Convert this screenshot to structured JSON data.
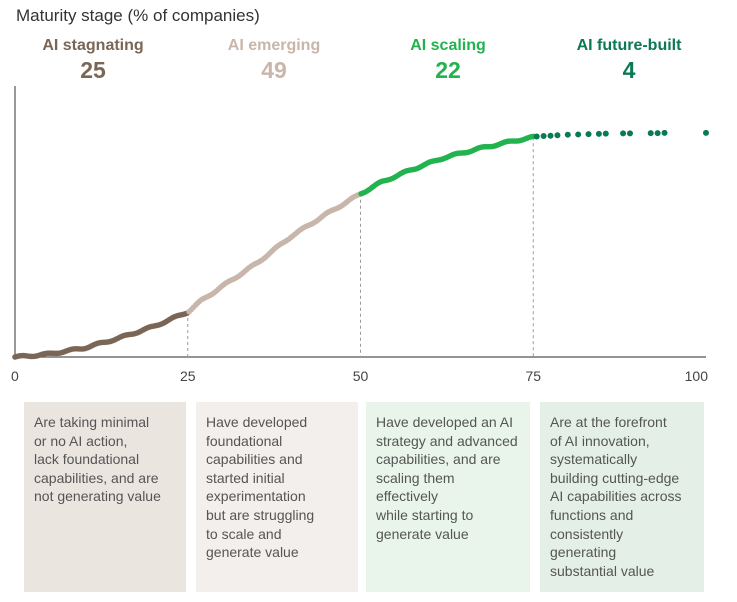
{
  "title": "Maturity stage (% of companies)",
  "stages": [
    {
      "name": "AI stagnating",
      "percent": "25",
      "color": "#7a6656",
      "desc_bg": "#ebe5e0",
      "description": [
        "Are taking minimal",
        "or no AI action,",
        "lack foundational",
        "capabilities, and are",
        "not generating value"
      ]
    },
    {
      "name": "AI emerging",
      "percent": "49",
      "color": "#c9b6ab",
      "desc_bg": "#f2efed",
      "description": [
        "Have developed",
        "foundational",
        "capabilities and",
        "started initial",
        "experimentation",
        "but are struggling",
        "to scale and",
        "generate value"
      ]
    },
    {
      "name": "AI scaling",
      "percent": "22",
      "color": "#22b34f",
      "desc_bg": "#e9f5ea",
      "description": [
        "Have developed an AI",
        "strategy and advanced",
        "capabilities, and are",
        "scaling them effectively",
        "while starting to",
        "generate value"
      ]
    },
    {
      "name": "AI future-built",
      "percent": "4",
      "color": "#0b7a52",
      "desc_bg": "#e4efe7",
      "description": [
        "Are at the forefront",
        "of AI innovation,",
        "systematically",
        "building cutting-edge",
        "AI capabilities across",
        "functions and",
        "consistently",
        "generating",
        "substantial value"
      ]
    }
  ],
  "chart_data": {
    "type": "scatter",
    "title": "Maturity stage (% of companies)",
    "xlabel": "",
    "ylabel": "",
    "xlim": [
      0,
      100
    ],
    "ylim": [
      0,
      100
    ],
    "x_ticks": [
      "0",
      "25",
      "50",
      "75",
      "100"
    ],
    "thresholds": [
      25,
      50,
      75
    ],
    "curve_knots": {
      "x": [
        0,
        2,
        5,
        10,
        15,
        20,
        25,
        27,
        30,
        35,
        40,
        45,
        50,
        53,
        57,
        62,
        67,
        72,
        75
      ],
      "y": [
        0,
        0.4,
        1.2,
        3.5,
        7.3,
        11.8,
        17.5,
        22,
        27.5,
        36.5,
        47,
        55.5,
        63.5,
        68,
        72.5,
        77.5,
        81,
        84,
        85.5
      ]
    },
    "future_built_points": [
      {
        "x": 75.5,
        "y": 85.8
      },
      {
        "x": 76.5,
        "y": 86.0
      },
      {
        "x": 77.5,
        "y": 86.1
      },
      {
        "x": 78.5,
        "y": 86.3
      },
      {
        "x": 80,
        "y": 86.5
      },
      {
        "x": 81.5,
        "y": 86.6
      },
      {
        "x": 83,
        "y": 86.7
      },
      {
        "x": 84.5,
        "y": 86.8
      },
      {
        "x": 85.5,
        "y": 86.9
      },
      {
        "x": 88,
        "y": 87.0
      },
      {
        "x": 89,
        "y": 87.0
      },
      {
        "x": 92,
        "y": 87.1
      },
      {
        "x": 93,
        "y": 87.1
      },
      {
        "x": 94,
        "y": 87.2
      },
      {
        "x": 100,
        "y": 87.2
      }
    ]
  }
}
